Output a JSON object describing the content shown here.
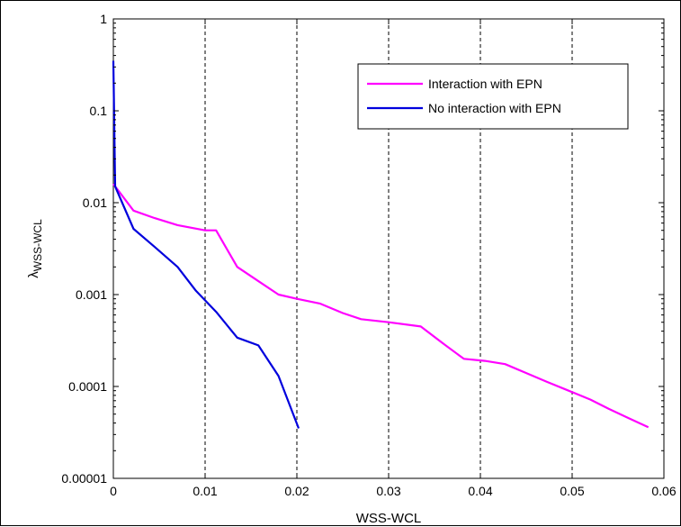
{
  "chart_data": {
    "type": "line",
    "title": "",
    "xlabel": "WSS-WCL",
    "ylabel_symbol": "λ",
    "ylabel_subscript": "WSS-WCL",
    "xlim": [
      0,
      0.06
    ],
    "ylim": [
      1e-05,
      1
    ],
    "yscale": "log",
    "x_ticks": [
      0,
      0.01,
      0.02,
      0.03,
      0.04,
      0.05,
      0.06
    ],
    "x_tick_labels": [
      "0",
      "0.01",
      "0.02",
      "0.03",
      "0.04",
      "0.05",
      "0.06"
    ],
    "y_ticks": [
      1e-05,
      0.0001,
      0.001,
      0.01,
      0.1,
      1
    ],
    "y_tick_labels": [
      "0.00001",
      "0.0001",
      "0.001",
      "0.01",
      "0.1",
      "1"
    ],
    "grid": "vertical dashed at x ticks",
    "legend_position": "top-right",
    "series": [
      {
        "name": "Interaction with EPN",
        "color": "#ff00ff",
        "x": [
          0,
          0.0022,
          0.0045,
          0.007,
          0.01,
          0.0112,
          0.0135,
          0.0158,
          0.018,
          0.02,
          0.0225,
          0.025,
          0.027,
          0.03,
          0.0335,
          0.036,
          0.0382,
          0.0405,
          0.0427,
          0.045,
          0.0472,
          0.0495,
          0.052,
          0.054,
          0.0562,
          0.0583
        ],
        "y": [
          0.016,
          0.0082,
          0.0068,
          0.0057,
          0.005,
          0.005,
          0.002,
          0.0014,
          0.001,
          0.0009,
          0.0008,
          0.00063,
          0.00054,
          0.0005,
          0.00045,
          0.00029,
          0.0002,
          0.00019,
          0.000175,
          0.00014,
          0.000113,
          9.1e-05,
          7.2e-05,
          5.7e-05,
          4.5e-05,
          3.6e-05
        ]
      },
      {
        "name": "No interaction with EPN",
        "color": "#0000dd",
        "x": [
          0,
          0.0002,
          0.0022,
          0.0045,
          0.007,
          0.009,
          0.0112,
          0.0135,
          0.0158,
          0.018,
          0.0202
        ],
        "y": [
          0.35,
          0.015,
          0.0052,
          0.0033,
          0.002,
          0.0011,
          0.00065,
          0.00034,
          0.00028,
          0.00013,
          3.5e-05
        ]
      }
    ]
  }
}
